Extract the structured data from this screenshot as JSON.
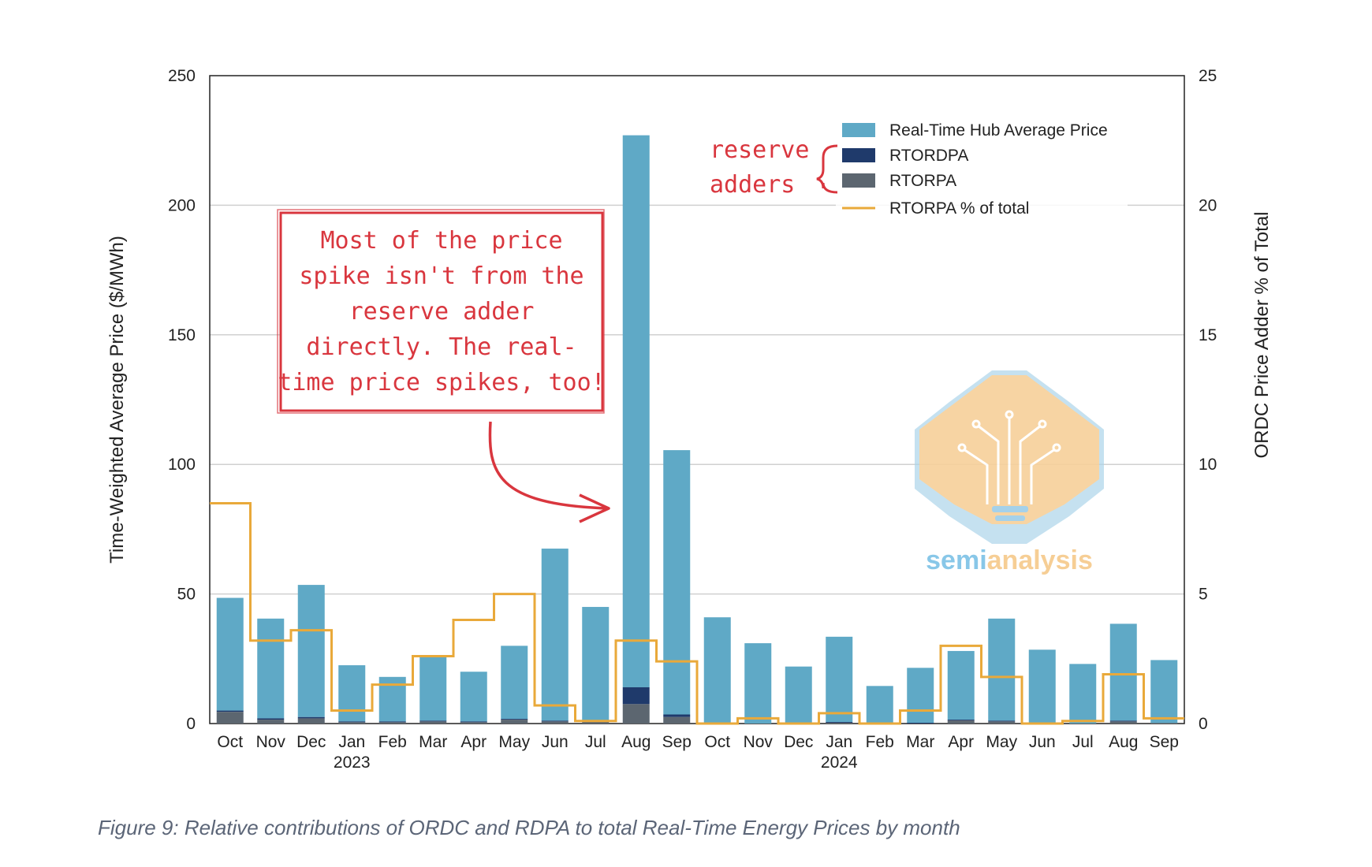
{
  "chart_data": {
    "type": "bar",
    "stacked": true,
    "categories": [
      "Oct",
      "Nov",
      "Dec",
      "Jan",
      "Feb",
      "Mar",
      "Apr",
      "May",
      "Jun",
      "Jul",
      "Aug",
      "Sep",
      "Oct",
      "Nov",
      "Dec",
      "Jan",
      "Feb",
      "Mar",
      "Apr",
      "May",
      "Jun",
      "Jul",
      "Aug",
      "Sep"
    ],
    "year_labels": [
      {
        "label": "2023",
        "category_index": 3
      },
      {
        "label": "2024",
        "category_index": 15
      }
    ],
    "series": [
      {
        "name": "Real-Time Hub Average Price",
        "color": "#5fa9c6",
        "values": [
          48.5,
          40.5,
          53.5,
          22.5,
          18,
          26,
          20,
          30,
          67.5,
          45,
          227,
          105.5,
          41,
          31,
          22,
          33.5,
          14.5,
          21.5,
          28,
          40.5,
          28.5,
          23,
          38.5,
          24.5
        ]
      },
      {
        "name": "RTORDPA",
        "color": "#1f3a6b",
        "values": [
          0.5,
          0.5,
          0.5,
          0.3,
          0.3,
          0.3,
          0.3,
          0.3,
          0.3,
          0.3,
          6.5,
          1,
          0,
          0,
          0,
          0.3,
          0,
          0.3,
          0.3,
          0.3,
          0,
          0,
          0.3,
          0
        ]
      },
      {
        "name": "RTORPA",
        "color": "#5c6670",
        "values": [
          4.5,
          1.5,
          2,
          0.5,
          0.5,
          0.8,
          0.5,
          1.5,
          0.8,
          0.8,
          7.5,
          2.5,
          0,
          0,
          0,
          0.3,
          0,
          0,
          1.2,
          0.8,
          0,
          0,
          0.8,
          0.2
        ]
      },
      {
        "name": "RTORPA % of total",
        "color": "#e9a93a",
        "axis": "right",
        "style": "step",
        "values": [
          8.5,
          3.2,
          3.6,
          0.5,
          1.5,
          2.6,
          4,
          5,
          0.7,
          0.1,
          3.2,
          2.4,
          0,
          0.2,
          0,
          0.4,
          0,
          0.5,
          3,
          1.8,
          0,
          0.1,
          1.9,
          0.2
        ]
      }
    ],
    "y_axis": {
      "label": "Time-Weighted Average Price ($/MWh)",
      "min": 0,
      "max": 250,
      "ticks": [
        0,
        50,
        100,
        150,
        200,
        250
      ]
    },
    "y2_axis": {
      "label": "ORDC Price Adder % of Total",
      "min": 0,
      "max": 25,
      "ticks": [
        0,
        5,
        10,
        15,
        20,
        25
      ]
    },
    "grid": true,
    "legend_position": "top-right",
    "annotations": {
      "callout_lines": [
        "Most of the price",
        "spike isn't from the",
        "reserve adder",
        "directly. The real-",
        "time price spikes, too!"
      ],
      "callout_target_category": "Aug",
      "brace_label_lines": [
        "reserve",
        "adders"
      ]
    }
  },
  "logo": {
    "text_part1": "semi",
    "text_part2": "analysis",
    "color1": "#7cc1e6",
    "color2": "#f6c98a"
  },
  "caption": "Figure 9: Relative contributions of ORDC and RDPA to total Real-Time Energy Prices by month",
  "colors": {
    "annotation_red": "#d9363e",
    "grid": "#d0d0d0",
    "axis": "#222222"
  }
}
